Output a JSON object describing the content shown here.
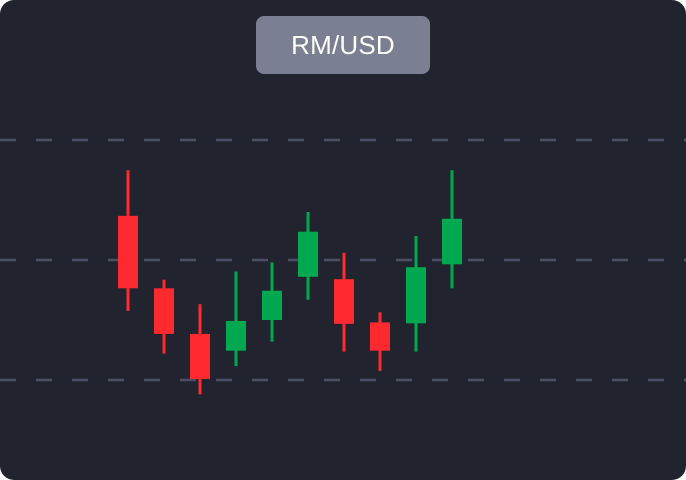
{
  "badge": {
    "label": "RM/USD"
  },
  "colors": {
    "background": "#21232f",
    "badge": "#7b7f92",
    "bullish": "#00a84f",
    "bearish": "#ff2930",
    "gridline": "#4a4f62"
  },
  "chart_data": {
    "type": "candlestick",
    "title": "RM/USD",
    "xlabel": "",
    "ylabel": "",
    "grid": "horizontal-dashed",
    "legend": "none",
    "ylim": [
      0,
      100
    ],
    "gridlines": [
      25,
      50,
      75
    ],
    "candles": [
      {
        "open": 59.2,
        "close": 44.1,
        "high": 68.7,
        "low": 39.4
      },
      {
        "open": 44.1,
        "close": 34.6,
        "high": 45.9,
        "low": 30.5
      },
      {
        "open": 34.6,
        "close": 25.2,
        "high": 40.8,
        "low": 22.0
      },
      {
        "open": 31.1,
        "close": 37.3,
        "high": 47.6,
        "low": 27.9
      },
      {
        "open": 37.5,
        "close": 43.6,
        "high": 49.5,
        "low": 33.0
      },
      {
        "open": 46.5,
        "close": 55.9,
        "high": 60.0,
        "low": 41.7
      },
      {
        "open": 46.0,
        "close": 36.7,
        "high": 51.5,
        "low": 30.9
      },
      {
        "open": 37.0,
        "close": 31.1,
        "high": 39.1,
        "low": 26.9
      },
      {
        "open": 36.8,
        "close": 48.5,
        "high": 55.0,
        "low": 30.9
      },
      {
        "open": 49.1,
        "close": 58.6,
        "high": 68.7,
        "low": 44.1
      }
    ]
  }
}
